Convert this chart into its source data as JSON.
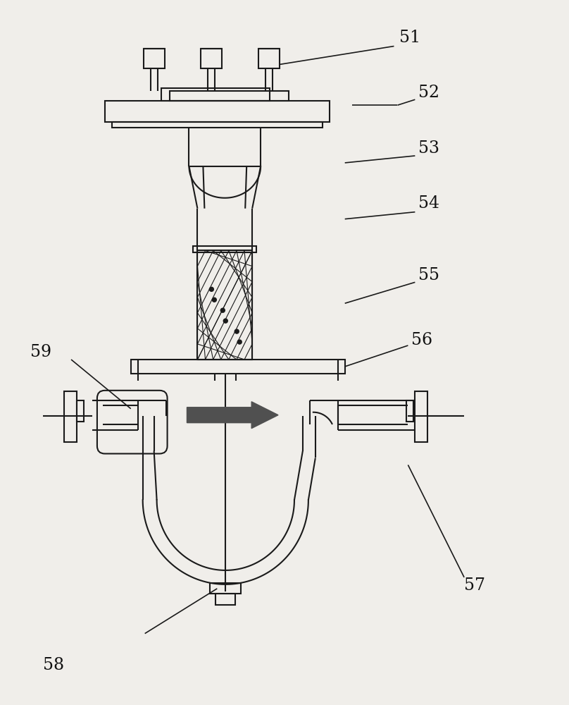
{
  "bg_color": "#f0eeea",
  "line_color": "#1a1a1a",
  "arrow_color": "#505050",
  "label_color": "#111111",
  "label_fontsize": 17,
  "lw": 1.5,
  "llw": 1.2
}
